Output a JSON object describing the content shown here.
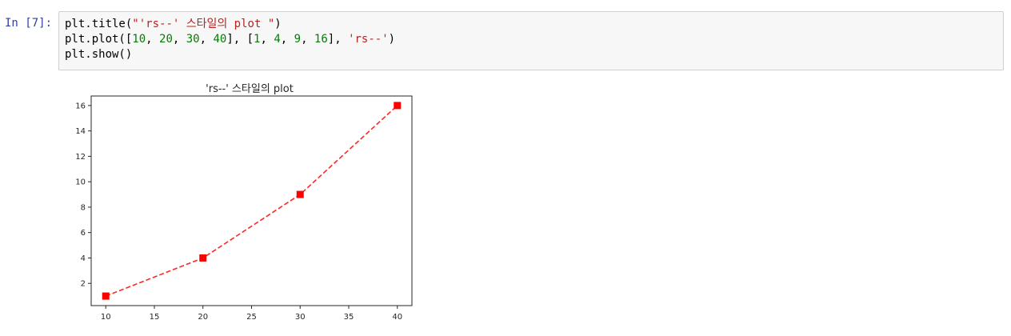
{
  "cell": {
    "prompt": "In [7]:",
    "code_lines": [
      [
        {
          "t": "plt.title(",
          "c": "plain"
        },
        {
          "t": "\"'rs--' 스타일의 plot \"",
          "c": "str"
        },
        {
          "t": ")",
          "c": "plain"
        }
      ],
      [
        {
          "t": "plt.plot([",
          "c": "plain"
        },
        {
          "t": "10",
          "c": "num"
        },
        {
          "t": ", ",
          "c": "plain"
        },
        {
          "t": "20",
          "c": "num"
        },
        {
          "t": ", ",
          "c": "plain"
        },
        {
          "t": "30",
          "c": "num"
        },
        {
          "t": ", ",
          "c": "plain"
        },
        {
          "t": "40",
          "c": "num"
        },
        {
          "t": "], [",
          "c": "plain"
        },
        {
          "t": "1",
          "c": "num"
        },
        {
          "t": ", ",
          "c": "plain"
        },
        {
          "t": "4",
          "c": "num"
        },
        {
          "t": ", ",
          "c": "plain"
        },
        {
          "t": "9",
          "c": "num"
        },
        {
          "t": ", ",
          "c": "plain"
        },
        {
          "t": "16",
          "c": "num"
        },
        {
          "t": "], ",
          "c": "plain"
        },
        {
          "t": "'rs--'",
          "c": "str"
        },
        {
          "t": ")",
          "c": "plain"
        }
      ],
      [
        {
          "t": "plt.show()",
          "c": "plain"
        }
      ]
    ]
  },
  "chart_data": {
    "type": "line",
    "title": "'rs--' 스타일의 plot",
    "xlabel": "",
    "ylabel": "",
    "x": [
      10,
      20,
      30,
      40
    ],
    "series": [
      {
        "values": [
          1,
          4,
          9,
          16
        ],
        "color": "#ff0000",
        "line_style": "dashed",
        "marker": "square"
      }
    ],
    "xlim": [
      8.5,
      41.5
    ],
    "ylim": [
      0.25,
      16.75
    ],
    "xticks": [
      10,
      15,
      20,
      25,
      30,
      35,
      40
    ],
    "yticks": [
      2,
      4,
      6,
      8,
      10,
      12,
      14,
      16
    ],
    "grid": false
  }
}
